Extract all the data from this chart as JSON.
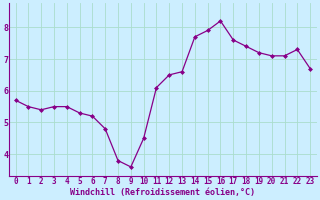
{
  "x": [
    0,
    1,
    2,
    3,
    4,
    5,
    6,
    7,
    8,
    9,
    10,
    11,
    12,
    13,
    14,
    15,
    16,
    17,
    18,
    19,
    20,
    21,
    22,
    23
  ],
  "y": [
    5.7,
    5.5,
    5.4,
    5.5,
    5.5,
    5.3,
    5.2,
    4.8,
    3.8,
    3.6,
    4.5,
    6.1,
    6.5,
    6.6,
    7.7,
    7.9,
    8.2,
    7.6,
    7.4,
    7.2,
    7.1,
    7.1,
    7.3,
    6.7
  ],
  "line_color": "#880088",
  "marker": "D",
  "marker_size": 2.0,
  "line_width": 0.9,
  "bg_color": "#cceeff",
  "grid_color": "#aaddcc",
  "xlabel": "Windchill (Refroidissement éolien,°C)",
  "xlabel_color": "#880088",
  "xlabel_fontsize": 6.0,
  "tick_color": "#880088",
  "tick_fontsize": 5.5,
  "ytick_labels": [
    "4",
    "5",
    "6",
    "7",
    "8"
  ],
  "yticks": [
    4,
    5,
    6,
    7,
    8
  ],
  "ylim": [
    3.3,
    8.75
  ],
  "xlim": [
    -0.5,
    23.5
  ],
  "xticks": [
    0,
    1,
    2,
    3,
    4,
    5,
    6,
    7,
    8,
    9,
    10,
    11,
    12,
    13,
    14,
    15,
    16,
    17,
    18,
    19,
    20,
    21,
    22,
    23
  ]
}
